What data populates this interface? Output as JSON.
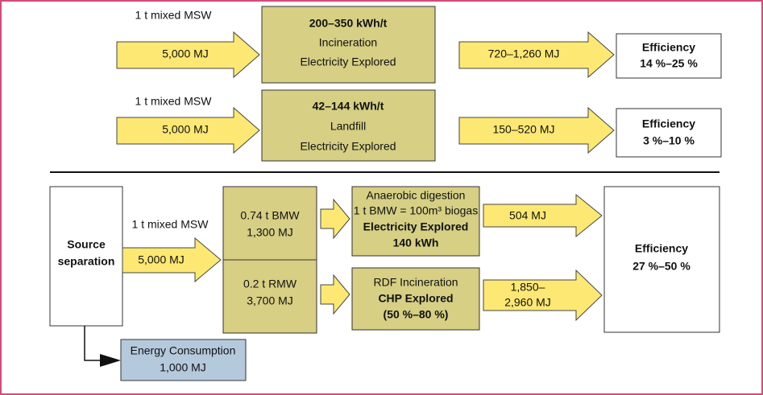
{
  "flows": [
    {
      "input_label": "1 t mixed MSW",
      "input_energy": "5,000 MJ",
      "process": [
        "200–350 kWh/t",
        "Incineration",
        "Electricity Explored"
      ],
      "output_energy": "720–1,260 MJ",
      "efficiency_title": "Efficiency",
      "efficiency": "14 %–25 %"
    },
    {
      "input_label": "1 t mixed MSW",
      "input_energy": "5,000 MJ",
      "process": [
        "42–144 kWh/t",
        "Landfill",
        "Electricity Explored"
      ],
      "output_energy": "150–520 MJ",
      "efficiency_title": "Efficiency",
      "efficiency": "3 %–10 %"
    }
  ],
  "separation": {
    "source": [
      "Source",
      "separation"
    ],
    "input_label": "1 t mixed MSW",
    "input_energy": "5,000 MJ",
    "fractions": [
      [
        "0.74 t BMW",
        "1,300 MJ"
      ],
      [
        "0.2 t RMW",
        "3,700 MJ"
      ]
    ],
    "processes": [
      [
        "Anaerobic digestion",
        "1 t BMW = 100m³ biogas",
        "Electricity Explored",
        "140 kWh"
      ],
      [
        "RDF Incineration",
        "CHP Explored",
        "(50 %–80 %)"
      ]
    ],
    "outputs": [
      [
        "504 MJ"
      ],
      [
        "1,850–",
        "2,960 MJ"
      ]
    ],
    "efficiency_title": "Efficiency",
    "efficiency": "27 %–50 %",
    "consumption": [
      "Energy Consumption",
      "1,000 MJ"
    ]
  }
}
